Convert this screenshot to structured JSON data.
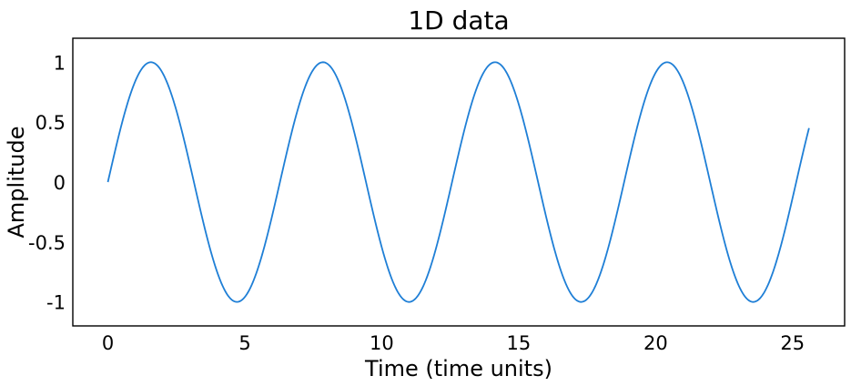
{
  "chart_data": {
    "type": "line",
    "title": "1D data",
    "xlabel": "Time (time units)",
    "ylabel": "Amplitude",
    "xlim": [
      -1.28,
      26.9
    ],
    "ylim": [
      -1.2,
      1.2
    ],
    "xticks": [
      0,
      5,
      10,
      15,
      20,
      25
    ],
    "xtick_labels": [
      "0",
      "5",
      "10",
      "15",
      "20",
      "25"
    ],
    "yticks": [
      1,
      0.5,
      0,
      -0.5,
      -1
    ],
    "ytick_labels": [
      "1",
      "0.5",
      "0",
      "-0.5",
      "-1"
    ],
    "grid": false,
    "legend": "none",
    "series": [
      {
        "color": "#1f7fd6",
        "function": "sin(x)",
        "x_range": [
          0,
          25.6
        ],
        "x": [
          0,
          0.8,
          1.6,
          2.4,
          3.2,
          4.0,
          4.8,
          5.6,
          6.4,
          7.2,
          8.0,
          8.8,
          9.6,
          10.4,
          11.2,
          12.0,
          12.8,
          13.6,
          14.4,
          15.2,
          16.0,
          16.8,
          17.6,
          18.4,
          19.2,
          20.0,
          20.8,
          21.6,
          22.4,
          23.2,
          24.0,
          24.8,
          25.6
        ],
        "values": [
          0.0,
          0.717,
          1.0,
          0.675,
          -0.058,
          -0.757,
          -0.996,
          -0.631,
          0.117,
          0.794,
          0.989,
          0.585,
          -0.175,
          -0.829,
          -0.979,
          -0.537,
          0.231,
          0.862,
          0.966,
          0.487,
          -0.288,
          -0.891,
          -0.949,
          -0.436,
          0.342,
          0.913,
          0.93,
          0.383,
          -0.394,
          -0.937,
          -0.906,
          -0.329,
          0.445
        ]
      }
    ]
  }
}
